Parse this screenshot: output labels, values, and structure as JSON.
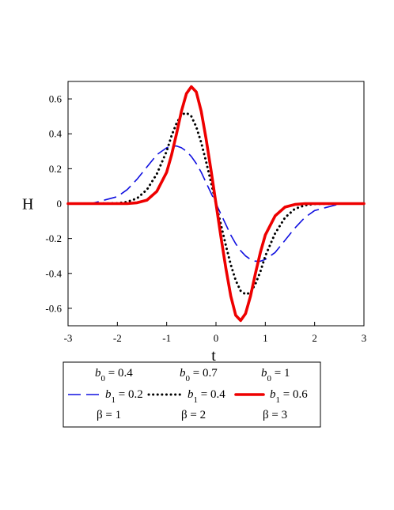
{
  "chart_data": {
    "type": "line",
    "title": "",
    "xlabel": "t",
    "ylabel": "H",
    "xlim": [
      -3,
      3
    ],
    "ylim": [
      -0.7,
      0.7
    ],
    "xticks": [
      -3,
      -2,
      -1,
      0,
      1,
      2,
      3
    ],
    "yticks": [
      -0.6,
      -0.4,
      -0.2,
      0,
      0.2,
      0.4,
      0.6
    ],
    "xtick_labels": [
      "-3",
      "-2",
      "-1",
      "0",
      "1",
      "2",
      "3"
    ],
    "ytick_labels": [
      "-0.6",
      "-0.4",
      "-0.2",
      "0",
      "0.2",
      "0.4",
      "0.6"
    ],
    "grid": false,
    "legend_position": "bottom",
    "x": [
      -3,
      -2.5,
      -2,
      -1.8,
      -1.6,
      -1.4,
      -1.2,
      -1,
      -0.9,
      -0.8,
      -0.7,
      -0.6,
      -0.5,
      -0.4,
      -0.3,
      -0.2,
      -0.1,
      0,
      0.1,
      0.2,
      0.3,
      0.4,
      0.5,
      0.6,
      0.7,
      0.8,
      0.9,
      1,
      1.2,
      1.4,
      1.6,
      1.8,
      2,
      2.5,
      3
    ],
    "series": [
      {
        "name_lines": [
          "b0 = 0.4",
          "b1 = 0.2",
          "β = 1"
        ],
        "color": "#1010e0",
        "style": "dashed",
        "values": [
          0,
          0.002,
          0.04,
          0.08,
          0.14,
          0.21,
          0.28,
          0.32,
          0.33,
          0.33,
          0.32,
          0.3,
          0.27,
          0.23,
          0.18,
          0.12,
          0.06,
          0,
          -0.06,
          -0.12,
          -0.18,
          -0.23,
          -0.27,
          -0.3,
          -0.32,
          -0.33,
          -0.33,
          -0.32,
          -0.28,
          -0.21,
          -0.14,
          -0.08,
          -0.04,
          -0.002,
          0
        ]
      },
      {
        "name_lines": [
          "b0 = 0.7",
          "b1 = 0.4",
          "β = 2"
        ],
        "color": "#000000",
        "style": "dotted",
        "values": [
          0,
          0,
          0.002,
          0.01,
          0.03,
          0.08,
          0.17,
          0.3,
          0.39,
          0.46,
          0.51,
          0.52,
          0.5,
          0.44,
          0.35,
          0.24,
          0.12,
          0,
          -0.12,
          -0.24,
          -0.35,
          -0.44,
          -0.5,
          -0.52,
          -0.51,
          -0.46,
          -0.39,
          -0.3,
          -0.17,
          -0.08,
          -0.03,
          -0.01,
          -0.002,
          0,
          0
        ]
      },
      {
        "name_lines": [
          "b0 = 1",
          "b1 = 0.6",
          "β = 3"
        ],
        "color": "#ee0000",
        "style": "solid",
        "values": [
          0,
          0,
          0,
          0,
          0.005,
          0.02,
          0.07,
          0.18,
          0.28,
          0.4,
          0.53,
          0.63,
          0.67,
          0.64,
          0.53,
          0.37,
          0.19,
          0,
          -0.19,
          -0.37,
          -0.53,
          -0.64,
          -0.67,
          -0.63,
          -0.53,
          -0.4,
          -0.28,
          -0.18,
          -0.07,
          -0.02,
          -0.005,
          0,
          0,
          0,
          0
        ]
      }
    ]
  }
}
